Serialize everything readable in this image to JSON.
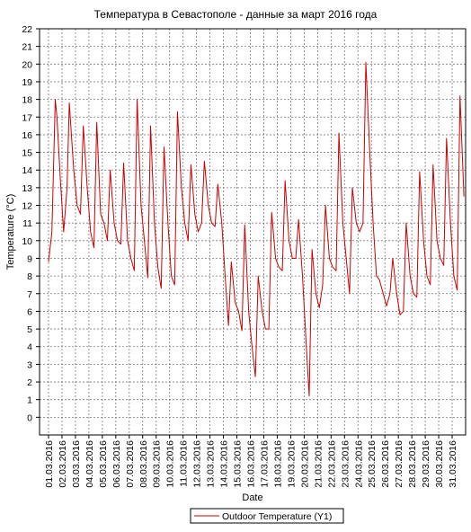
{
  "chart_data": {
    "type": "line",
    "title": "Температура в Севастополе - данные за март 2016 года",
    "xlabel": "Date",
    "ylabel": "Temperature (°C)",
    "ylim": [
      -1,
      22
    ],
    "yticks": [
      0,
      1,
      2,
      3,
      4,
      5,
      6,
      7,
      8,
      9,
      10,
      11,
      12,
      13,
      14,
      15,
      16,
      17,
      18,
      19,
      20,
      21,
      22
    ],
    "x_tick_labels": [
      "01.03.2016",
      "02.03.2016",
      "03.03.2016",
      "04.03.2016",
      "05.03.2016",
      "06.03.2016",
      "07.03.2016",
      "08.03.2016",
      "09.03.2016",
      "10.03.2016",
      "11.03.2016",
      "12.03.2016",
      "13.03.2016",
      "14.03.2016",
      "15.03.2016",
      "16.03.2016",
      "17.03.2016",
      "18.03.2016",
      "19.03.2016",
      "20.03.2016",
      "21.03.2016",
      "22.03.2016",
      "23.03.2016",
      "24.03.2016",
      "25.03.2016",
      "26.03.2016",
      "27.03.2016",
      "28.03.2016",
      "29.03.2016",
      "30.03.2016",
      "31.03.2016"
    ],
    "grid": true,
    "legend_position": "bottom-center",
    "series": [
      {
        "name": "Outdoor Temperature (Y1)",
        "color": "#cc0000",
        "x": [
          "01.03.2016 00:00",
          "01.03.2016 06:00",
          "01.03.2016 12:00",
          "01.03.2016 15:00",
          "01.03.2016 21:00",
          "02.03.2016 03:00",
          "02.03.2016 09:00",
          "02.03.2016 13:00",
          "02.03.2016 21:00",
          "03.03.2016 03:00",
          "03.03.2016 09:00",
          "03.03.2016 14:00",
          "03.03.2016 21:00",
          "04.03.2016 03:00",
          "04.03.2016 09:00",
          "04.03.2016 14:00",
          "04.03.2016 21:00",
          "05.03.2016 03:00",
          "05.03.2016 09:00",
          "05.03.2016 14:00",
          "05.03.2016 21:00",
          "06.03.2016 03:00",
          "06.03.2016 09:00",
          "06.03.2016 14:00",
          "06.03.2016 21:00",
          "07.03.2016 03:00",
          "07.03.2016 09:00",
          "07.03.2016 14:00",
          "07.03.2016 21:00",
          "08.03.2016 03:00",
          "08.03.2016 09:00",
          "08.03.2016 14:00",
          "08.03.2016 21:00",
          "09.03.2016 03:00",
          "09.03.2016 09:00",
          "09.03.2016 14:00",
          "09.03.2016 21:00",
          "10.03.2016 03:00",
          "10.03.2016 09:00",
          "10.03.2016 14:00",
          "10.03.2016 21:00",
          "11.03.2016 03:00",
          "11.03.2016 09:00",
          "11.03.2016 14:00",
          "11.03.2016 21:00",
          "12.03.2016 03:00",
          "12.03.2016 09:00",
          "12.03.2016 14:00",
          "12.03.2016 21:00",
          "13.03.2016 03:00",
          "13.03.2016 09:00",
          "13.03.2016 14:00",
          "13.03.2016 21:00",
          "14.03.2016 03:00",
          "14.03.2016 09:00",
          "14.03.2016 14:00",
          "14.03.2016 21:00",
          "15.03.2016 03:00",
          "15.03.2016 09:00",
          "15.03.2016 14:00",
          "15.03.2016 21:00",
          "16.03.2016 03:00",
          "16.03.2016 09:00",
          "16.03.2016 14:00",
          "16.03.2016 21:00",
          "17.03.2016 03:00",
          "17.03.2016 09:00",
          "17.03.2016 14:00",
          "17.03.2016 21:00",
          "18.03.2016 03:00",
          "18.03.2016 09:00",
          "18.03.2016 14:00",
          "18.03.2016 21:00",
          "19.03.2016 03:00",
          "19.03.2016 09:00",
          "19.03.2016 14:00",
          "19.03.2016 21:00",
          "20.03.2016 03:00",
          "20.03.2016 09:00",
          "20.03.2016 14:00",
          "20.03.2016 21:00",
          "21.03.2016 03:00",
          "21.03.2016 09:00",
          "21.03.2016 14:00",
          "21.03.2016 21:00",
          "22.03.2016 03:00",
          "22.03.2016 09:00",
          "22.03.2016 14:00",
          "22.03.2016 21:00",
          "23.03.2016 03:00",
          "23.03.2016 09:00",
          "23.03.2016 14:00",
          "23.03.2016 21:00",
          "24.03.2016 03:00",
          "24.03.2016 09:00",
          "24.03.2016 14:00",
          "24.03.2016 21:00",
          "25.03.2016 03:00",
          "25.03.2016 09:00",
          "25.03.2016 14:00",
          "25.03.2016 21:00",
          "26.03.2016 03:00",
          "26.03.2016 09:00",
          "26.03.2016 14:00",
          "26.03.2016 21:00",
          "27.03.2016 03:00",
          "27.03.2016 09:00",
          "27.03.2016 14:00",
          "27.03.2016 21:00",
          "28.03.2016 03:00",
          "28.03.2016 09:00",
          "28.03.2016 14:00",
          "28.03.2016 21:00",
          "29.03.2016 03:00",
          "29.03.2016 09:00",
          "29.03.2016 14:00",
          "29.03.2016 21:00",
          "30.03.2016 03:00",
          "30.03.2016 09:00",
          "30.03.2016 14:00",
          "30.03.2016 21:00",
          "31.03.2016 03:00",
          "31.03.2016 09:00",
          "31.03.2016 14:00",
          "31.03.2016 21:00"
        ],
        "values": [
          8.8,
          10.5,
          18.0,
          17.0,
          13.5,
          10.5,
          13.0,
          17.8,
          14.0,
          12.0,
          11.5,
          16.5,
          13.0,
          10.5,
          9.6,
          16.7,
          11.5,
          11.0,
          10.0,
          14.0,
          11.0,
          10.0,
          9.8,
          14.4,
          10.0,
          9.0,
          8.3,
          18.0,
          12.0,
          10.0,
          7.9,
          16.5,
          11.0,
          8.5,
          7.3,
          15.3,
          11.0,
          8.0,
          7.5,
          17.3,
          13.0,
          11.0,
          10.0,
          14.3,
          11.5,
          10.5,
          11.0,
          14.5,
          12.0,
          11.0,
          10.8,
          13.2,
          11.0,
          8.0,
          5.2,
          8.8,
          6.5,
          6.0,
          4.9,
          10.9,
          6.0,
          4.0,
          2.3,
          8.0,
          6.0,
          5.0,
          5.0,
          11.6,
          9.0,
          8.5,
          8.3,
          13.4,
          10.0,
          9.0,
          9.0,
          11.2,
          8.0,
          4.5,
          1.2,
          9.5,
          7.0,
          6.2,
          7.5,
          12.0,
          9.0,
          8.5,
          8.3,
          16.1,
          11.0,
          9.0,
          7.0,
          13.0,
          11.0,
          10.5,
          11.0,
          20.1,
          15.0,
          11.0,
          8.0,
          7.8,
          7.0,
          6.3,
          7.0,
          9.0,
          7.0,
          5.8,
          6.0,
          11.0,
          8.0,
          7.0,
          6.8,
          13.9,
          10.0,
          8.0,
          7.5,
          14.3,
          10.0,
          9.0,
          8.6,
          15.8,
          11.0,
          8.0,
          7.2,
          18.2,
          12.5
        ]
      }
    ]
  }
}
